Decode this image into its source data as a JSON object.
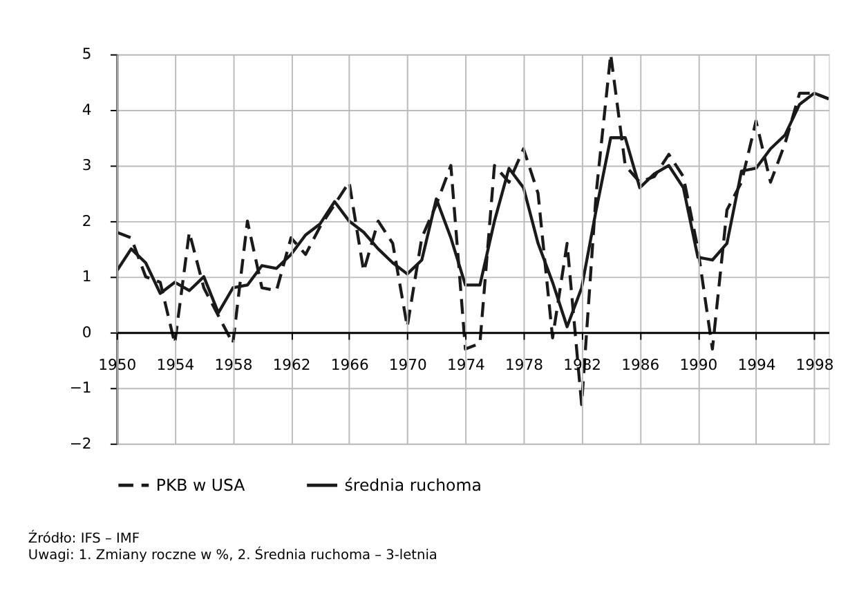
{
  "chart_data": {
    "type": "line",
    "xlim": [
      1950,
      1999
    ],
    "xticks": [
      1950,
      1954,
      1958,
      1962,
      1966,
      1970,
      1974,
      1978,
      1982,
      1986,
      1990,
      1994,
      1998
    ],
    "ylim": [
      -2,
      5
    ],
    "yticks": [
      -2,
      -1,
      0,
      1,
      2,
      3,
      4,
      5
    ],
    "grid": true,
    "legend": "bottom",
    "marker": "none",
    "x": [
      1950,
      1951,
      1952,
      1953,
      1954,
      1955,
      1956,
      1957,
      1958,
      1959,
      1960,
      1961,
      1962,
      1963,
      1964,
      1965,
      1966,
      1967,
      1968,
      1969,
      1970,
      1971,
      1972,
      1973,
      1974,
      1975,
      1976,
      1977,
      1978,
      1979,
      1980,
      1981,
      1982,
      1983,
      1984,
      1985,
      1986,
      1987,
      1988,
      1989,
      1990,
      1991,
      1992,
      1993,
      1994,
      1995,
      1996,
      1997,
      1998,
      1999
    ],
    "series": [
      {
        "name": "PKB w USA",
        "color": "#1a1a1a",
        "line_style": "dashed",
        "values": [
          1.8,
          1.7,
          1.0,
          0.9,
          -0.2,
          1.8,
          0.8,
          0.3,
          -0.2,
          2.0,
          0.8,
          0.75,
          1.7,
          1.4,
          1.9,
          2.3,
          2.7,
          1.1,
          2.0,
          1.6,
          0.1,
          1.7,
          2.3,
          3.0,
          -0.3,
          -0.2,
          3.0,
          2.7,
          3.3,
          2.5,
          -0.1,
          1.6,
          -1.3,
          2.5,
          5.0,
          3.0,
          2.7,
          2.8,
          3.2,
          2.8,
          1.5,
          -0.3,
          2.2,
          2.7,
          3.8,
          2.7,
          3.4,
          4.3,
          4.3,
          4.2
        ]
      },
      {
        "name": "średnia ruchoma",
        "color": "#1a1a1a",
        "line_style": "solid",
        "values": [
          1.1,
          1.5,
          1.25,
          0.7,
          0.9,
          0.75,
          1.0,
          0.35,
          0.8,
          0.85,
          1.2,
          1.15,
          1.4,
          1.75,
          1.95,
          2.35,
          2.0,
          1.8,
          1.5,
          1.25,
          1.05,
          1.3,
          2.4,
          1.7,
          0.85,
          0.85,
          2.0,
          2.95,
          2.6,
          1.6,
          0.9,
          0.1,
          0.8,
          2.2,
          3.5,
          3.5,
          2.6,
          2.85,
          3.0,
          2.6,
          1.35,
          1.3,
          1.6,
          2.9,
          2.95,
          3.3,
          3.55,
          4.1,
          4.3,
          4.2
        ]
      }
    ],
    "annotations": [
      "Źródło: IFS – IMF",
      "Uwagi: 1. Zmiany roczne w %, 2. Średnia ruchoma – 3-letnia"
    ]
  }
}
